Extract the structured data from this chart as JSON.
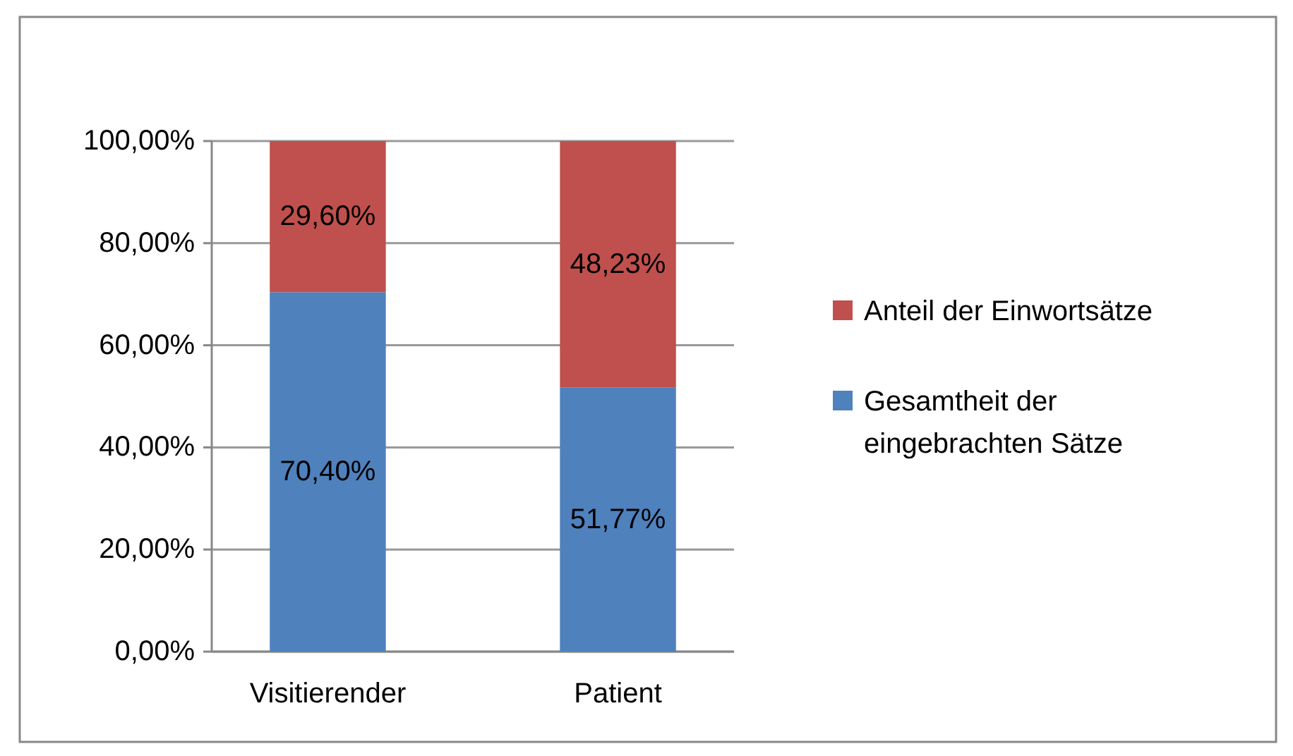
{
  "chart_data": {
    "type": "bar",
    "stacked": true,
    "categories": [
      "Visitierender",
      "Patient"
    ],
    "series": [
      {
        "name": "Gesamtheit der eingebrachten Sätze",
        "color": "#4f81bd",
        "values": [
          70.4,
          51.77
        ],
        "value_labels": [
          "70,40%",
          "51,77%"
        ]
      },
      {
        "name": "Anteil der Einwortsätze",
        "color": "#c0504d",
        "values": [
          29.6,
          48.23
        ],
        "value_labels": [
          "29,60%",
          "48,23%"
        ]
      }
    ],
    "ylim": [
      0,
      100
    ],
    "yticks": [
      {
        "value": 0,
        "label": "0,00%"
      },
      {
        "value": 20,
        "label": "20,00%"
      },
      {
        "value": 40,
        "label": "40,00%"
      },
      {
        "value": 60,
        "label": "60,00%"
      },
      {
        "value": 80,
        "label": "80,00%"
      },
      {
        "value": 100,
        "label": "100,00%"
      }
    ],
    "grid": "y",
    "legend": "right"
  }
}
